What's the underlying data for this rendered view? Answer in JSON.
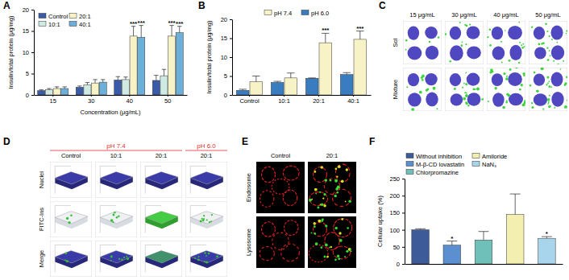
{
  "chart_data": [
    {
      "panel": "A",
      "type": "bar",
      "x_label": "Concentration (μg/mL)",
      "y_label": "Insulin/total protein (μg/mg)",
      "categories": [
        "15",
        "30",
        "40",
        "50"
      ],
      "series": [
        {
          "name": "Control",
          "color": "#3a5ba8",
          "values": [
            1.0,
            1.8,
            3.5,
            3.4
          ],
          "errors": [
            0.2,
            0.3,
            0.8,
            1.2
          ],
          "significance": [
            null,
            null,
            null,
            null
          ]
        },
        {
          "name": "10:1",
          "color": "#cfeae3",
          "values": [
            1.2,
            2.4,
            3.6,
            4.5
          ],
          "errors": [
            0.3,
            0.5,
            0.6,
            1.5
          ],
          "significance": [
            null,
            null,
            null,
            null
          ]
        },
        {
          "name": "20:1",
          "color": "#f7f3c6",
          "values": [
            1.5,
            2.8,
            13.8,
            13.8
          ],
          "errors": [
            0.4,
            0.8,
            2.3,
            2.5
          ],
          "significance": [
            null,
            null,
            "***",
            "***"
          ]
        },
        {
          "name": "40:1",
          "color": "#6cb0da",
          "values": [
            1.5,
            3.0,
            13.5,
            14.6
          ],
          "errors": [
            0.4,
            0.6,
            2.8,
            1.5
          ],
          "significance": [
            null,
            null,
            "***",
            "***"
          ]
        }
      ],
      "ylim": [
        0,
        20
      ],
      "yticks": [
        0,
        5,
        10,
        15,
        20
      ],
      "grid": false,
      "legend": "top-left"
    },
    {
      "panel": "B",
      "type": "bar",
      "y_label": "Insulin/total protein (μg/mg)",
      "categories": [
        "Control",
        "10:1",
        "20:1",
        "40:1"
      ],
      "series": [
        {
          "name": "pH 7.4",
          "color": "#f7f3c6",
          "values": [
            3.5,
            4.5,
            13.8,
            14.7
          ],
          "errors": [
            1.5,
            1.3,
            2.5,
            2.2
          ],
          "significance": [
            null,
            null,
            "***",
            "***"
          ]
        },
        {
          "name": "pH 6.0",
          "color": "#3a7cc0",
          "values": [
            1.2,
            3.3,
            4.4,
            5.4
          ],
          "errors": [
            0.3,
            0.3,
            0.1,
            0.5
          ],
          "significance": [
            null,
            null,
            null,
            null
          ]
        }
      ],
      "ylim": [
        0,
        20
      ],
      "yticks": [
        0,
        5,
        10,
        15,
        20
      ],
      "grid": false,
      "legend": "top"
    },
    {
      "panel": "F",
      "type": "bar",
      "y_label": "Cellular uptake (%)",
      "categories": [
        "Without inhibition",
        "M-β-CD lovastatin",
        "Chlorpromazine",
        "Amiloride",
        "NaN₃"
      ],
      "values": [
        100,
        55,
        70,
        145,
        75
      ],
      "errors": [
        3,
        12,
        25,
        60,
        5
      ],
      "colors": [
        "#3d5a99",
        "#5b8fd0",
        "#6fc0b8",
        "#f2efb0",
        "#a8d4ec"
      ],
      "significance": [
        null,
        "*",
        null,
        null,
        "*"
      ],
      "ylim": [
        0,
        250
      ],
      "yticks": [
        0,
        50,
        100,
        150,
        200,
        250
      ],
      "grid": false,
      "legend": "top",
      "tick_labels": "y"
    }
  ],
  "image_panels": [
    {
      "panel": "C",
      "columns": [
        "15 μg/mL",
        "30 μg/mL",
        "40 μg/mL",
        "50 μg/mL"
      ],
      "rows": [
        "Sol",
        "Mixture"
      ]
    },
    {
      "panel": "D",
      "groups": [
        {
          "label": "pH 7.4",
          "columns": [
            "Control",
            "10:1",
            "20:1"
          ]
        },
        {
          "label": "pH 6.0",
          "columns": [
            "20:1"
          ]
        }
      ],
      "rows": [
        "Nuclei",
        "FITC-Ins",
        "Merge"
      ]
    },
    {
      "panel": "E",
      "columns": [
        "Control",
        "20:1"
      ],
      "rows": [
        "Endosome",
        "Lysosome"
      ]
    }
  ]
}
